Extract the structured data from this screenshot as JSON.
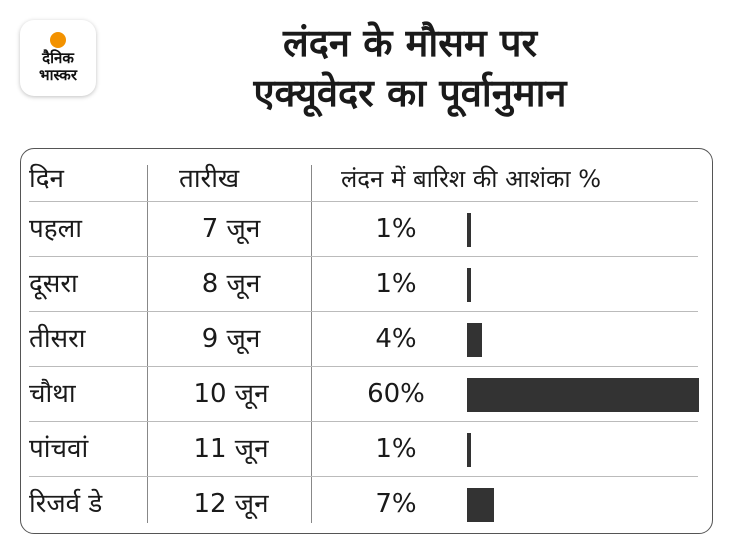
{
  "logo": {
    "line1": "दैनिक",
    "line2": "भास्कर"
  },
  "title": {
    "line1": "लंदन के मौसम पर",
    "line2": "एक्यूवेदर का पूर्वानुमान"
  },
  "chart_data": {
    "type": "bar",
    "orientation": "horizontal",
    "columns": [
      "दिन",
      "तारीख",
      "लंदन में बारिश की आशंका %"
    ],
    "rows": [
      {
        "day": "पहला",
        "date": "7 जून",
        "label": "1%",
        "value": 1
      },
      {
        "day": "दूसरा",
        "date": "8 जून",
        "label": "1%",
        "value": 1
      },
      {
        "day": "तीसरा",
        "date": "9 जून",
        "label": "4%",
        "value": 4
      },
      {
        "day": "चौथा",
        "date": "10 जून",
        "label": "60%",
        "value": 60
      },
      {
        "day": "पांचवां",
        "date": "11 जून",
        "label": "1%",
        "value": 1
      },
      {
        "day": "रिजर्व डे",
        "date": "12 जून",
        "label": "7%",
        "value": 7
      }
    ],
    "max_value": 60,
    "bar_color": "#333333"
  }
}
